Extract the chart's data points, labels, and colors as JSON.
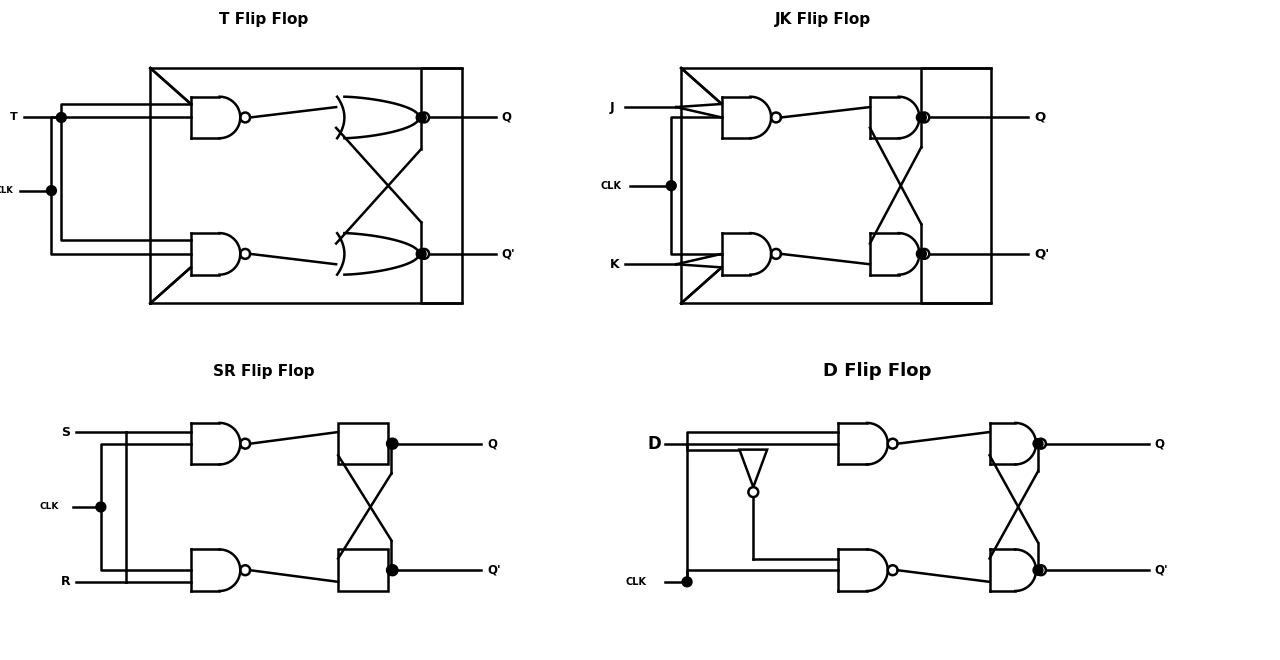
{
  "bg_color": "#ffffff",
  "line_color": "#000000",
  "lw": 1.8,
  "titles": {
    "T": "T Flip Flop",
    "JK": "JK Flip Flop",
    "SR": "SR Flip Flop",
    "D": "D Flip Flop"
  }
}
